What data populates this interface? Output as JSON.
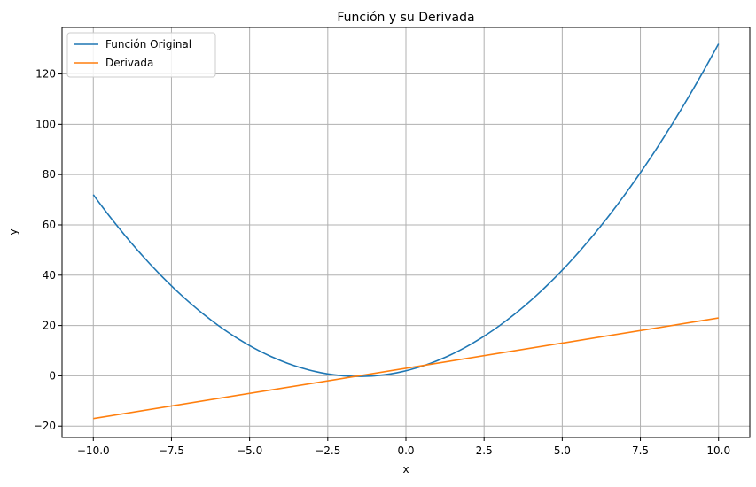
{
  "chart_data": {
    "type": "line",
    "title": "Función y su Derivada",
    "xlabel": "x",
    "ylabel": "y",
    "xlim": [
      -11.0,
      11.0
    ],
    "ylim": [
      -24.5,
      138.5
    ],
    "grid": true,
    "legend_position": "top-left",
    "x_ticks": [
      -10.0,
      -7.5,
      -5.0,
      -2.5,
      0.0,
      2.5,
      5.0,
      7.5,
      10.0
    ],
    "x_tick_labels": [
      "−10.0",
      "−7.5",
      "−5.0",
      "−2.5",
      "0.0",
      "2.5",
      "5.0",
      "7.5",
      "10.0"
    ],
    "y_ticks": [
      -20,
      0,
      20,
      40,
      60,
      80,
      100,
      120
    ],
    "y_tick_labels": [
      "−20",
      "0",
      "20",
      "40",
      "60",
      "80",
      "100",
      "120"
    ],
    "series": [
      {
        "name": "Función Original",
        "color": "#1f77b4",
        "x": [
          -10,
          -9,
          -8,
          -7,
          -6,
          -5,
          -4,
          -3,
          -2,
          -1.5,
          -1,
          0,
          1,
          2,
          3,
          4,
          5,
          6,
          7,
          8,
          9,
          10
        ],
        "y": [
          72,
          56,
          42,
          30,
          20,
          12,
          6,
          2,
          0,
          0,
          0.0,
          2,
          6,
          12,
          20,
          30,
          42,
          56,
          72,
          90,
          110,
          132
        ]
      },
      {
        "name": "Derivada",
        "color": "#ff7f0e",
        "x": [
          -10,
          10
        ],
        "y": [
          -17,
          23
        ]
      }
    ]
  }
}
